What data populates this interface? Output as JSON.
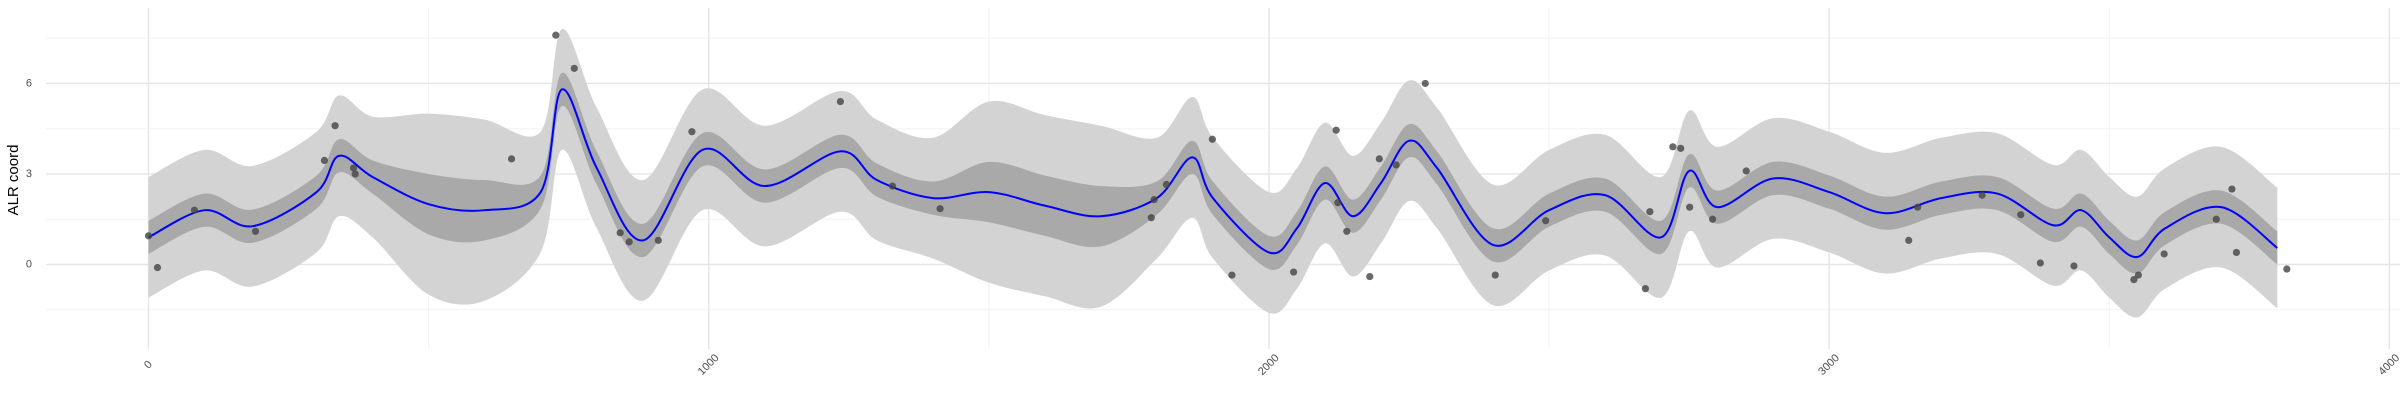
{
  "chart_data": {
    "type": "gp",
    "ylabel": "ALR coord",
    "xlim": [
      -183,
      4019
    ],
    "ylim": [
      -2.8,
      8.5
    ],
    "xticks": [
      0,
      1000,
      2000,
      3000,
      4000
    ],
    "yticks": [
      0,
      3,
      6
    ],
    "grid": true,
    "x": [
      0,
      100,
      186,
      300,
      340,
      400,
      500,
      600,
      700,
      738,
      800,
      883,
      989,
      1100,
      1235,
      1300,
      1400,
      1500,
      1600,
      1700,
      1800,
      1863,
      1900,
      2000,
      2050,
      2100,
      2150,
      2200,
      2250,
      2300,
      2400,
      2500,
      2600,
      2700,
      2750,
      2800,
      2900,
      3000,
      3100,
      3200,
      3300,
      3400,
      3450,
      3500,
      3550,
      3600,
      3700,
      3800
    ],
    "bands": [
      {
        "color": "#d3d3d3",
        "lower": [
          -1.1,
          -0.2,
          -0.73,
          0.4,
          1.6,
          0.9,
          -1.0,
          -1.2,
          0.4,
          3.8,
          1.2,
          -1.2,
          1.8,
          0.6,
          1.75,
          0.8,
          0.2,
          -0.6,
          -1.05,
          -1.4,
          0.2,
          1.55,
          0.2,
          -1.6,
          -0.8,
          0.7,
          -0.4,
          0.7,
          2.1,
          1.2,
          -1.35,
          -0.2,
          0.3,
          -1.1,
          1.1,
          -0.1,
          0.85,
          0.4,
          -0.3,
          0.2,
          0.35,
          -0.7,
          -0.2,
          -1.1,
          -1.75,
          -0.8,
          -0.1,
          -1.45
        ],
        "upper": [
          2.9,
          3.8,
          3.27,
          4.4,
          5.6,
          4.9,
          5.0,
          4.8,
          4.4,
          7.8,
          5.2,
          2.8,
          5.8,
          4.6,
          5.75,
          4.8,
          4.2,
          5.4,
          4.95,
          4.6,
          4.2,
          5.55,
          4.2,
          2.4,
          3.2,
          4.7,
          3.6,
          4.7,
          6.1,
          5.2,
          2.65,
          3.8,
          4.3,
          2.9,
          5.1,
          3.9,
          4.85,
          4.4,
          3.7,
          4.2,
          4.35,
          3.3,
          3.8,
          2.9,
          2.25,
          3.2,
          3.9,
          2.55
        ]
      },
      {
        "color": "#a9a9a9",
        "lower": [
          0.35,
          1.25,
          0.72,
          1.85,
          3.05,
          2.35,
          1.0,
          0.8,
          1.85,
          5.25,
          2.65,
          0.25,
          3.25,
          2.05,
          3.2,
          2.25,
          1.65,
          1.4,
          0.95,
          0.6,
          1.65,
          3.0,
          1.65,
          -0.15,
          0.65,
          2.15,
          1.05,
          2.15,
          3.55,
          2.65,
          0.1,
          1.25,
          1.75,
          0.35,
          2.55,
          1.35,
          2.3,
          1.85,
          1.15,
          1.65,
          1.8,
          0.75,
          1.25,
          0.35,
          -0.3,
          0.65,
          1.35,
          0.0
        ],
        "upper": [
          1.45,
          2.35,
          1.82,
          2.95,
          4.15,
          3.45,
          3.0,
          2.8,
          2.95,
          6.35,
          3.75,
          1.35,
          4.35,
          3.15,
          4.3,
          3.35,
          2.75,
          3.4,
          2.95,
          2.6,
          2.75,
          4.1,
          2.75,
          0.95,
          1.75,
          3.25,
          2.15,
          3.25,
          4.65,
          3.75,
          1.2,
          2.35,
          2.85,
          1.45,
          3.65,
          2.45,
          3.4,
          2.95,
          2.25,
          2.75,
          2.9,
          1.85,
          2.35,
          1.45,
          0.8,
          1.75,
          2.45,
          1.1
        ]
      }
    ],
    "mean": {
      "color": "#0000ff",
      "values": [
        0.9,
        1.8,
        1.27,
        2.4,
        3.6,
        2.9,
        2.0,
        1.8,
        2.4,
        5.8,
        3.2,
        0.8,
        3.8,
        2.6,
        3.75,
        2.8,
        2.2,
        2.4,
        1.95,
        1.6,
        2.2,
        3.55,
        2.2,
        0.4,
        1.2,
        2.7,
        1.6,
        2.7,
        4.1,
        3.2,
        0.65,
        1.8,
        2.3,
        0.9,
        3.1,
        1.9,
        2.85,
        2.4,
        1.7,
        2.2,
        2.35,
        1.3,
        1.8,
        0.9,
        0.25,
        1.2,
        1.9,
        0.55
      ]
    },
    "points": {
      "color": "#444444",
      "x": [
        0,
        16,
        82,
        191,
        314,
        333,
        366,
        369,
        648,
        727,
        760,
        842,
        858,
        910,
        970,
        1235,
        1328,
        1413,
        1790,
        1795,
        1817,
        1899,
        1934,
        2044,
        2120,
        2123,
        2139,
        2180,
        2197,
        2227,
        2279,
        2404,
        2494,
        2672,
        2680,
        2721,
        2735,
        2751,
        2792,
        2852,
        3142,
        3158,
        3273,
        3342,
        3377,
        3437,
        3544,
        3552,
        3598,
        3691,
        3719,
        3727,
        3817
      ],
      "y": [
        0.95,
        -0.1,
        1.8,
        1.1,
        3.45,
        4.6,
        3.2,
        3.0,
        3.5,
        7.6,
        6.5,
        1.05,
        0.75,
        0.8,
        4.4,
        5.4,
        2.6,
        1.85,
        1.55,
        2.15,
        2.65,
        4.15,
        -0.35,
        -0.25,
        4.45,
        2.05,
        1.1,
        -0.4,
        3.5,
        3.3,
        6.0,
        -0.35,
        1.45,
        -0.8,
        1.75,
        3.9,
        3.85,
        1.9,
        1.5,
        3.1,
        0.8,
        1.9,
        2.3,
        1.65,
        0.05,
        -0.05,
        -0.5,
        -0.35,
        0.35,
        1.5,
        2.5,
        0.4,
        -0.15
      ]
    }
  }
}
